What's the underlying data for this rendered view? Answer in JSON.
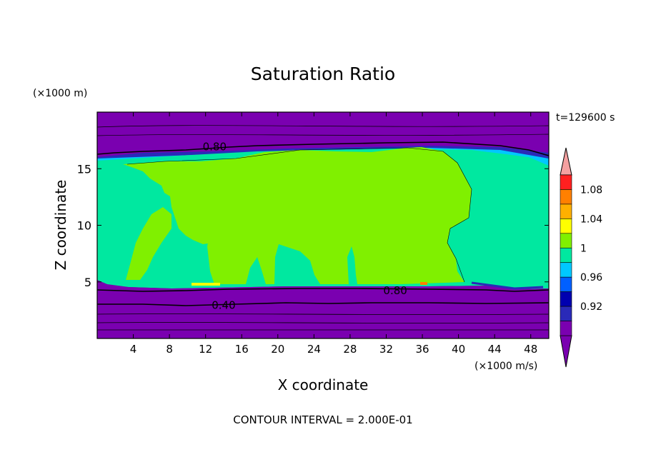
{
  "chart_data": {
    "type": "heatmap",
    "title": "Saturation Ratio",
    "xlabel": "X coordinate",
    "ylabel": "Z coordinate",
    "x_unit": "(×1000 m/s)",
    "y_unit": "(×1000 m)",
    "time_label": "t=129600 s",
    "footer": "CONTOUR INTERVAL = 2.000E-01",
    "xlim": [
      0,
      50
    ],
    "ylim": [
      0,
      20
    ],
    "x_ticks": [
      "4",
      "8",
      "12",
      "16",
      "20",
      "24",
      "28",
      "32",
      "36",
      "40",
      "44",
      "48"
    ],
    "x_tick_values": [
      4,
      8,
      12,
      16,
      20,
      24,
      28,
      32,
      36,
      40,
      44,
      48
    ],
    "y_ticks": [
      "5",
      "10",
      "15"
    ],
    "y_tick_values": [
      5,
      10,
      15
    ],
    "colorbar": {
      "colors": [
        "#7a00b0",
        "#2a2ab8",
        "#0000b0",
        "#0060ff",
        "#00c8ff",
        "#00e8a0",
        "#80f000",
        "#ffff00",
        "#ffb000",
        "#ff8000",
        "#ff2020",
        "#f4a0a0"
      ],
      "labels": [
        "0.92",
        "0.96",
        "1",
        "1.04",
        "1.08"
      ]
    },
    "contour_labels": [
      {
        "text": "0.80",
        "x": 13.0,
        "y": 17.0
      },
      {
        "text": "0.80",
        "x": 33.0,
        "y": 4.3
      },
      {
        "text": "0.40",
        "x": 14.0,
        "y": 3.0
      }
    ]
  }
}
